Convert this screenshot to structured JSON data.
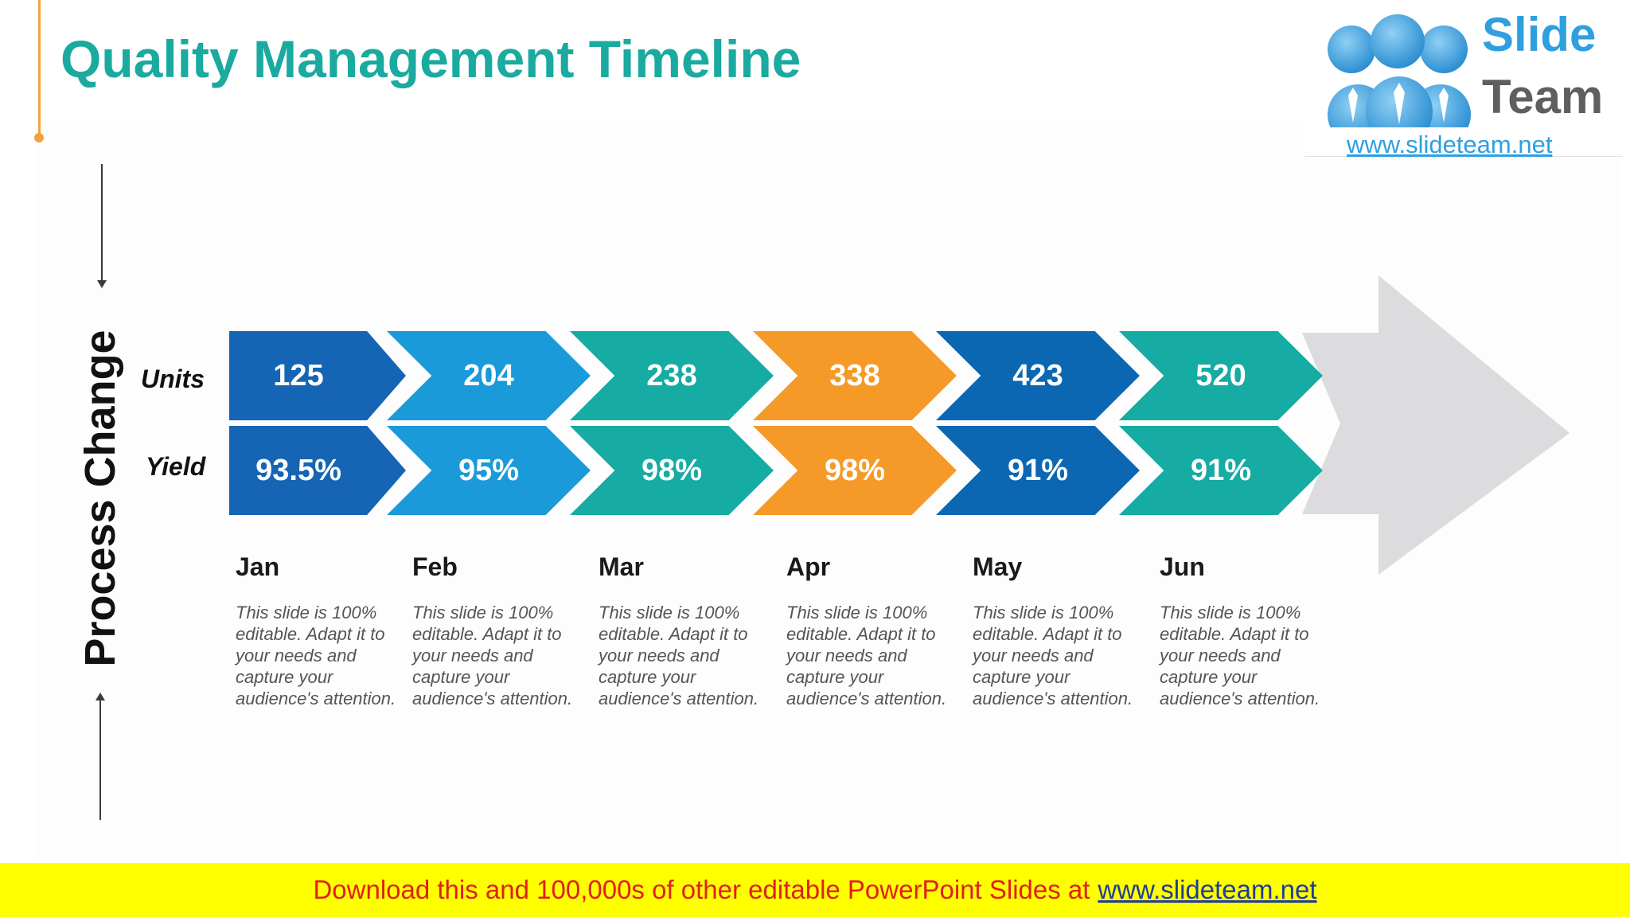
{
  "title": "Quality Management Timeline",
  "logo": {
    "line1": "Slide",
    "line2": "Team",
    "url": "www.slideteam.net"
  },
  "axis_label": "Process Change",
  "row_labels": {
    "units": "Units",
    "yield": "Yield"
  },
  "timeline": [
    {
      "month": "Jan",
      "units": "125",
      "yield": "93.5%",
      "color": "#1565b4",
      "description": "This slide is 100% editable. Adapt it to your needs and capture your audience's attention."
    },
    {
      "month": "Feb",
      "units": "204",
      "yield": "95%",
      "color": "#1a9ad9",
      "description": "This slide is 100% editable. Adapt it to your needs and capture your audience's attention."
    },
    {
      "month": "Mar",
      "units": "238",
      "yield": "98%",
      "color": "#16aba3",
      "description": "This slide is 100% editable. Adapt it to your needs and capture your audience's attention."
    },
    {
      "month": "Apr",
      "units": "338",
      "yield": "98%",
      "color": "#f59a28",
      "description": "This slide is 100% editable. Adapt it to your needs and capture your audience's attention."
    },
    {
      "month": "May",
      "units": "423",
      "yield": "91%",
      "color": "#0b67b2",
      "description": "This slide is 100% editable. Adapt it to your needs and capture your audience's attention."
    },
    {
      "month": "Jun",
      "units": "520",
      "yield": "91%",
      "color": "#16aba3",
      "description": "This slide is 100% editable. Adapt it to your needs and capture your audience's attention."
    }
  ],
  "colors": {
    "title": "#1aaa9f",
    "accent": "#f2a23c",
    "big_arrow": "#dcdcde",
    "footer_bg": "#ffff00",
    "footer_text": "#e0201b"
  },
  "footer": {
    "text": "Download this and 100,000s of other editable PowerPoint Slides at",
    "link": "www.slideteam.net"
  }
}
